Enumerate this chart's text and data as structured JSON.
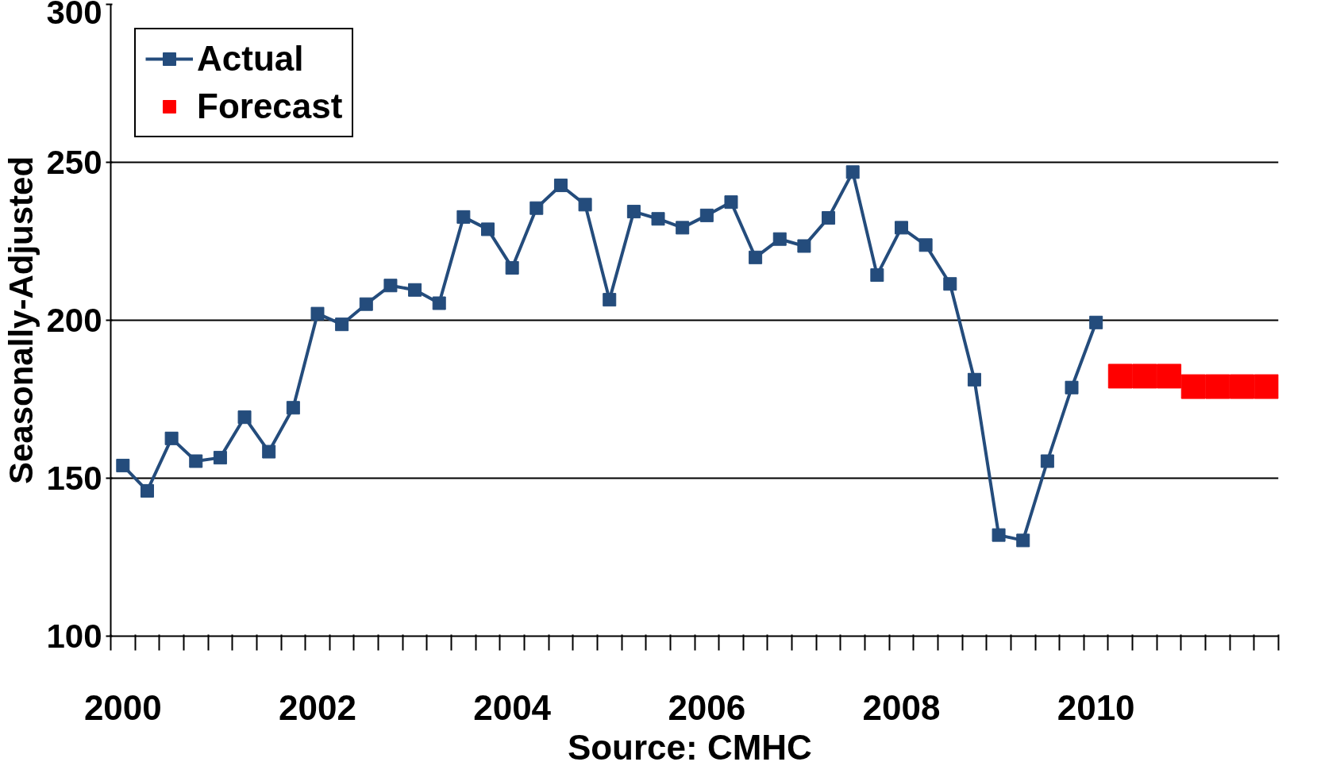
{
  "chart_data": {
    "type": "line",
    "ylabel": "Seasonally-Adjusted",
    "categories": [
      "2000",
      null,
      null,
      null,
      null,
      null,
      null,
      null,
      "2002",
      null,
      null,
      null,
      null,
      null,
      null,
      null,
      "2004",
      null,
      null,
      null,
      null,
      null,
      null,
      null,
      "2006",
      null,
      null,
      null,
      null,
      null,
      null,
      null,
      "2008",
      null,
      null,
      null,
      null,
      null,
      null,
      null,
      "2010",
      null,
      null,
      null,
      null,
      null,
      null,
      null
    ],
    "series": [
      {
        "name": "Actual",
        "marker": "square",
        "color": "#244c7c",
        "values": [
          154,
          146,
          162.6,
          155.4,
          156.5,
          169.3,
          158.4,
          172.3,
          202.1,
          198.7,
          205.1,
          211,
          209.6,
          205.4,
          232.7,
          228.8,
          216.6,
          235.5,
          242.7,
          236.6,
          206.5,
          234.4,
          232.1,
          229.3,
          233.2,
          237.4,
          219.9,
          225.7,
          223.5,
          232.4,
          246.9,
          214.3,
          229.3,
          223.8,
          211.5,
          181.2,
          132,
          130.3,
          155.4,
          178.7,
          199.3,
          null,
          null,
          null,
          null,
          null,
          null,
          null
        ]
      },
      {
        "name": "Forecast",
        "type": "scatter",
        "marker": "square",
        "color": "#ff0000",
        "values": [
          null,
          null,
          null,
          null,
          null,
          null,
          null,
          null,
          null,
          null,
          null,
          null,
          null,
          null,
          null,
          null,
          null,
          null,
          null,
          null,
          null,
          null,
          null,
          null,
          null,
          null,
          null,
          null,
          null,
          null,
          null,
          null,
          null,
          null,
          null,
          null,
          null,
          null,
          null,
          null,
          null,
          182.3,
          182.3,
          182.3,
          179,
          179,
          179,
          179
        ]
      }
    ],
    "ylim": [
      100,
      300
    ],
    "yticks": [
      100,
      150,
      200,
      250,
      300
    ],
    "grid": "y",
    "legend": "top left",
    "annotations": [
      "Source:  CMHC"
    ]
  }
}
